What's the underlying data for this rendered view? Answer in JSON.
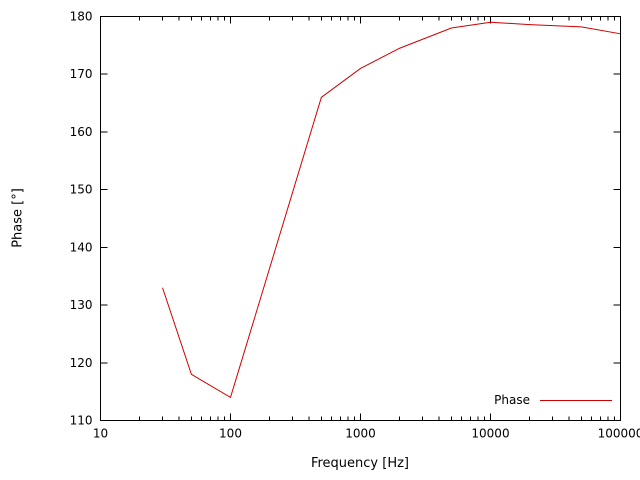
{
  "chart_data": {
    "type": "line",
    "title": "",
    "xlabel": "Frequency [Hz]",
    "ylabel": "Phase [°]",
    "x_scale": "log",
    "xlim": [
      10,
      100000
    ],
    "ylim": [
      110,
      180
    ],
    "grid": false,
    "legend_position": "bottom right",
    "x_ticks": {
      "values": [
        10,
        100,
        1000,
        10000,
        100000
      ],
      "labels": [
        "10",
        "100",
        "1000",
        "10000",
        "100000"
      ]
    },
    "y_ticks": {
      "values": [
        110,
        120,
        130,
        140,
        150,
        160,
        170,
        180
      ],
      "labels": [
        "110",
        "120",
        "130",
        "140",
        "150",
        "160",
        "170",
        "180"
      ]
    },
    "series": [
      {
        "name": "Phase",
        "color": "#cc0000",
        "x": [
          30,
          50,
          100,
          500,
          1000,
          2000,
          5000,
          10000,
          20000,
          50000,
          100000
        ],
        "y": [
          133,
          118,
          114,
          166,
          171,
          174.5,
          178,
          179,
          178.6,
          178.2,
          177
        ]
      }
    ]
  }
}
